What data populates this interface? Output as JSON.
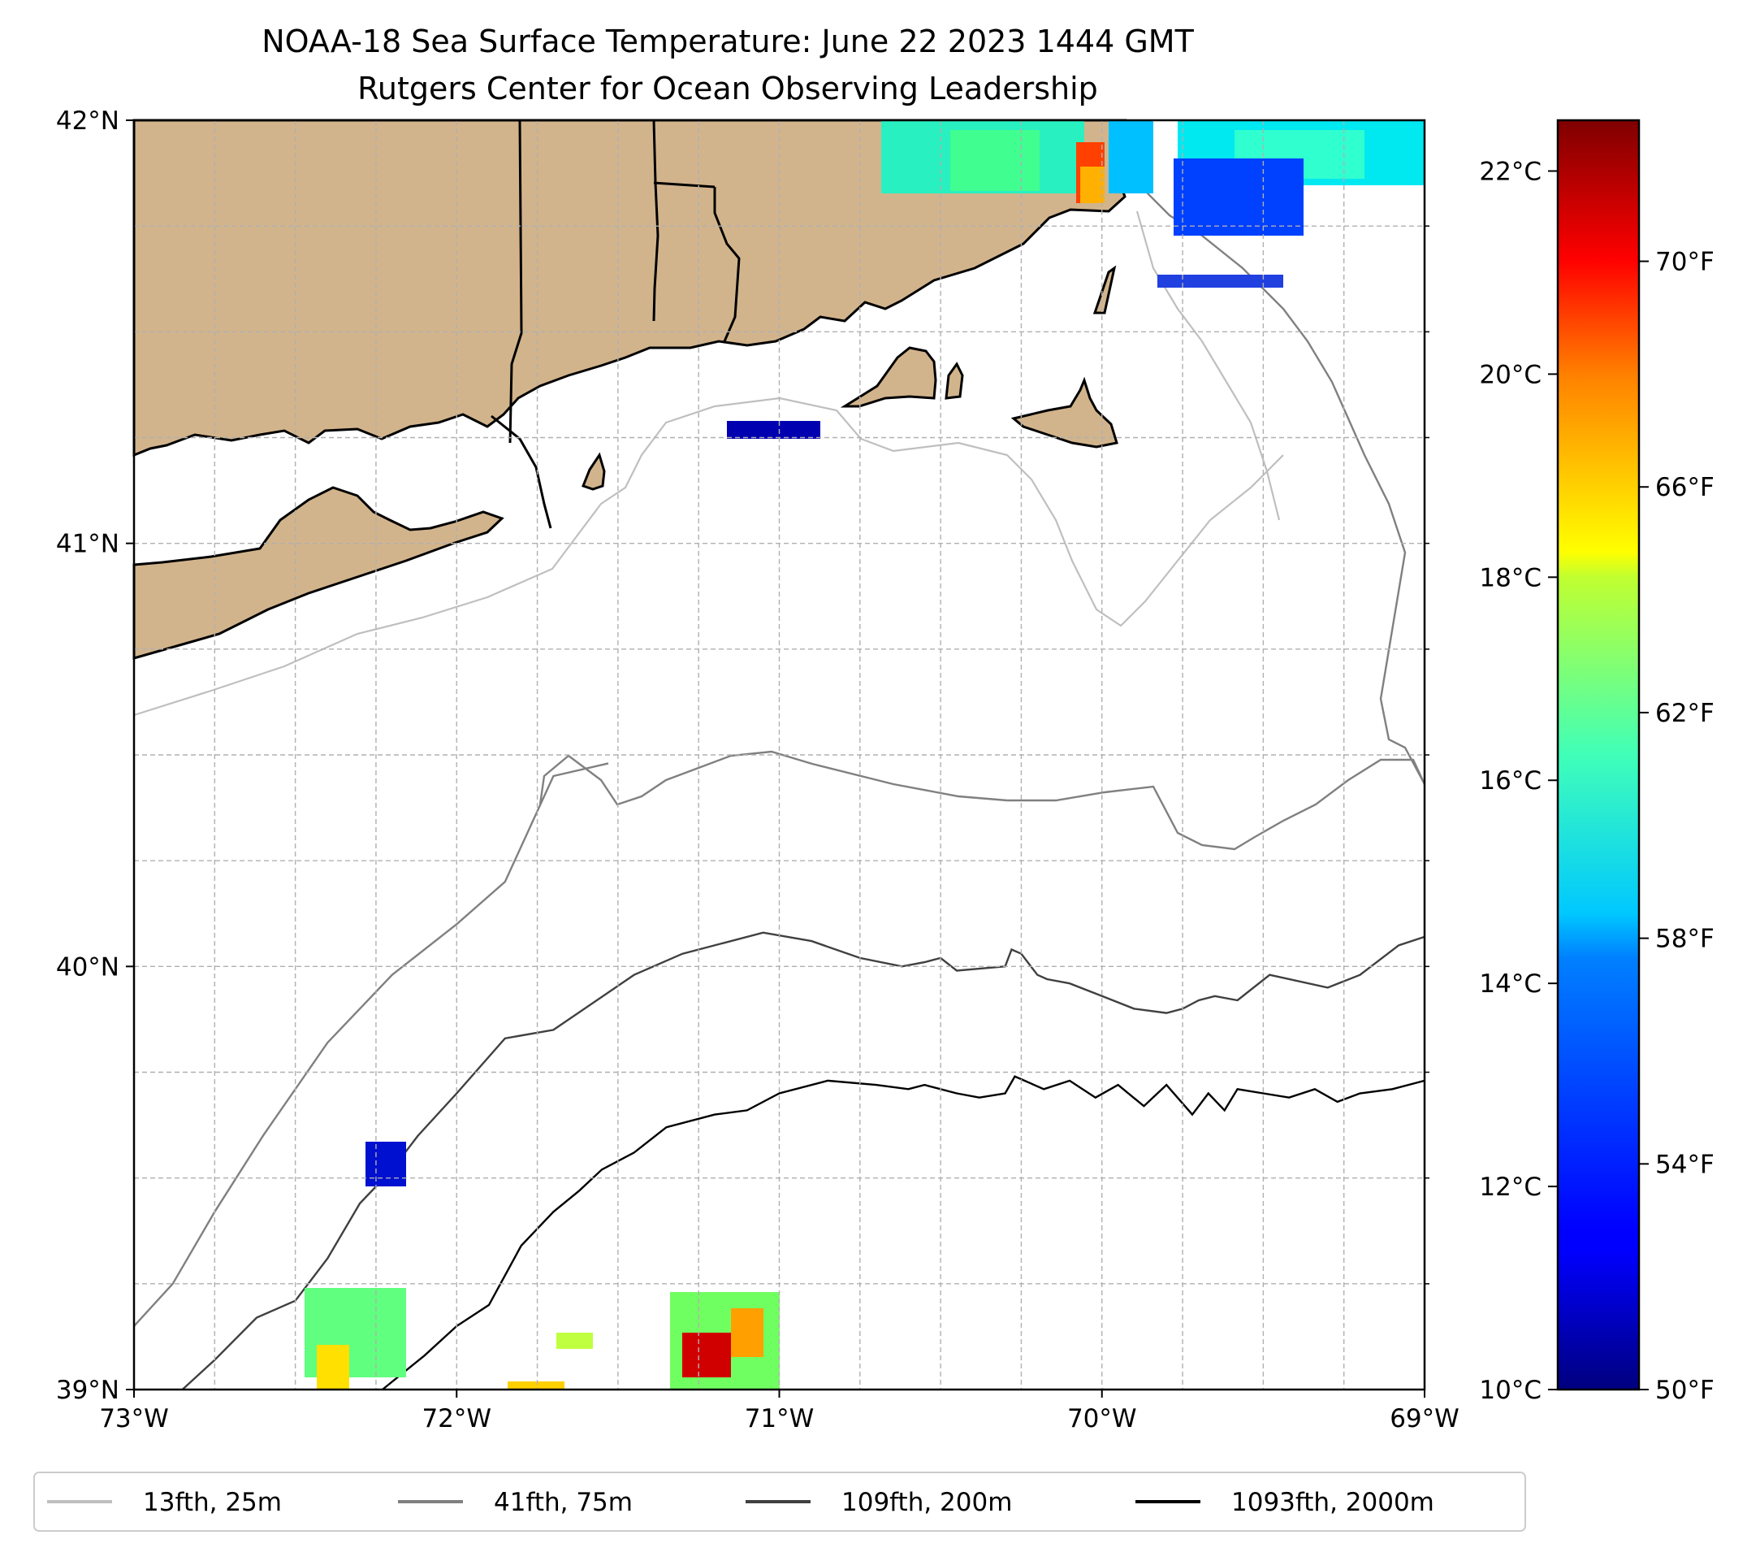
{
  "title": {
    "line1": "NOAA-18 Sea Surface Temperature: June 22 2023 1444 GMT",
    "line2": "Rutgers Center for Ocean Observing Leadership"
  },
  "map": {
    "extent": {
      "lon_min": -73,
      "lon_max": -69,
      "lat_min": 39,
      "lat_max": 42
    },
    "x_ticks": [
      {
        "lon": -73,
        "label": "73°W"
      },
      {
        "lon": -72,
        "label": "72°W"
      },
      {
        "lon": -71,
        "label": "71°W"
      },
      {
        "lon": -70,
        "label": "70°W"
      },
      {
        "lon": -69,
        "label": "69°W"
      }
    ],
    "y_ticks": [
      {
        "lat": 39,
        "label": "39°N"
      },
      {
        "lat": 40,
        "label": "40°N"
      },
      {
        "lat": 41,
        "label": "41°N"
      },
      {
        "lat": 42,
        "label": "42°N"
      }
    ],
    "grid": true,
    "grid_step_deg": 0.25,
    "land_color": "#d2b48c",
    "coast_color": "#000000"
  },
  "colorbar": {
    "colormap": "jet",
    "celsius_range": [
      10,
      22.5
    ],
    "celsius_ticks": [
      {
        "value": 10,
        "label": "10°C"
      },
      {
        "value": 12,
        "label": "12°C"
      },
      {
        "value": 14,
        "label": "14°C"
      },
      {
        "value": 16,
        "label": "16°C"
      },
      {
        "value": 18,
        "label": "18°C"
      },
      {
        "value": 20,
        "label": "20°C"
      },
      {
        "value": 22,
        "label": "22°C"
      }
    ],
    "fahrenheit_ticks": [
      {
        "value": 50,
        "label": "50°F"
      },
      {
        "value": 54,
        "label": "54°F"
      },
      {
        "value": 58,
        "label": "58°F"
      },
      {
        "value": 62,
        "label": "62°F"
      },
      {
        "value": 66,
        "label": "66°F"
      },
      {
        "value": 70,
        "label": "70°F"
      }
    ]
  },
  "legend": [
    {
      "label": "13fth, 25m",
      "color": "#bfbfbf"
    },
    {
      "label": "41fth, 75m",
      "color": "#808080"
    },
    {
      "label": "109fth, 200m",
      "color": "#404040"
    },
    {
      "label": "1093fth, 2000m",
      "color": "#000000"
    }
  ],
  "isobaths": {
    "m75": [
      [
        -71.53,
        40.48
      ],
      [
        -71.7,
        40.45
      ],
      [
        -71.85,
        40.2
      ],
      [
        -72.0,
        40.1
      ],
      [
        -72.2,
        39.98
      ],
      [
        -72.4,
        39.82
      ],
      [
        -72.6,
        39.6
      ],
      [
        -72.75,
        39.42
      ],
      [
        -72.88,
        39.25
      ],
      [
        -73.0,
        39.15
      ]
    ],
    "m200": [
      [
        [
          -69.0,
          40.07
        ],
        [
          -69.08,
          40.05
        ],
        [
          -69.2,
          39.98
        ],
        [
          -69.3,
          39.95
        ],
        [
          -69.48,
          39.98
        ],
        [
          -69.58,
          39.92
        ],
        [
          -69.65,
          39.93
        ],
        [
          -69.7,
          39.92
        ],
        [
          -69.75,
          39.9
        ],
        [
          -69.8,
          39.89
        ],
        [
          -69.9,
          39.9
        ],
        [
          -70.0,
          39.93
        ],
        [
          -70.1,
          39.96
        ],
        [
          -70.17,
          39.97
        ],
        [
          -70.2,
          39.98
        ],
        [
          -70.25,
          40.03
        ],
        [
          -70.28,
          40.04
        ],
        [
          -70.3,
          40.0
        ],
        [
          -70.45,
          39.99
        ],
        [
          -70.5,
          40.02
        ],
        [
          -70.55,
          40.01
        ],
        [
          -70.62,
          40.0
        ],
        [
          -70.75,
          40.02
        ],
        [
          -70.9,
          40.06
        ],
        [
          -71.05,
          40.08
        ],
        [
          -71.3,
          40.03
        ],
        [
          -71.45,
          39.98
        ],
        [
          -71.7,
          39.85
        ],
        [
          -71.85,
          39.83
        ],
        [
          -72.0,
          39.7
        ],
        [
          -72.12,
          39.6
        ],
        [
          -72.2,
          39.52
        ],
        [
          -72.3,
          39.44
        ],
        [
          -72.4,
          39.31
        ],
        [
          -72.5,
          39.21
        ],
        [
          -72.62,
          39.17
        ],
        [
          -72.75,
          39.07
        ],
        [
          -72.85,
          39.0
        ]
      ]
    ],
    "m2000": [
      [
        -69.0,
        39.73
      ],
      [
        -69.1,
        39.71
      ],
      [
        -69.2,
        39.7
      ],
      [
        -69.27,
        39.68
      ],
      [
        -69.34,
        39.71
      ],
      [
        -69.42,
        39.69
      ],
      [
        -69.5,
        39.7
      ],
      [
        -69.58,
        39.71
      ],
      [
        -69.62,
        39.66
      ],
      [
        -69.67,
        39.7
      ],
      [
        -69.72,
        39.65
      ],
      [
        -69.8,
        39.72
      ],
      [
        -69.87,
        39.67
      ],
      [
        -69.95,
        39.72
      ],
      [
        -70.02,
        39.69
      ],
      [
        -70.1,
        39.73
      ],
      [
        -70.18,
        39.71
      ],
      [
        -70.27,
        39.74
      ],
      [
        -70.3,
        39.7
      ],
      [
        -70.38,
        39.69
      ],
      [
        -70.45,
        39.7
      ],
      [
        -70.55,
        39.72
      ],
      [
        -70.6,
        39.71
      ],
      [
        -70.7,
        39.72
      ],
      [
        -70.85,
        39.73
      ],
      [
        -71.0,
        39.7
      ],
      [
        -71.1,
        39.66
      ],
      [
        -71.2,
        39.65
      ],
      [
        -71.35,
        39.62
      ],
      [
        -71.45,
        39.56
      ],
      [
        -71.55,
        39.52
      ],
      [
        -71.62,
        39.47
      ],
      [
        -71.7,
        39.42
      ],
      [
        -71.8,
        39.34
      ],
      [
        -71.9,
        39.2
      ],
      [
        -72.0,
        39.15
      ],
      [
        -72.1,
        39.08
      ],
      [
        -72.23,
        39.0
      ]
    ]
  }
}
